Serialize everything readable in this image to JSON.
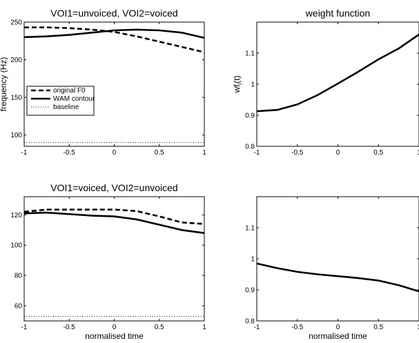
{
  "chart_data": [
    {
      "type": "line",
      "title": "VOI1=unvoiced, VOI2=voiced",
      "xlabel": "",
      "ylabel": "frequency (Hz)",
      "xlim": [
        -1,
        1
      ],
      "ylim": [
        85,
        250
      ],
      "xticks": [
        -1,
        -0.5,
        0,
        0.5,
        1
      ],
      "yticks": [
        100,
        150,
        200,
        250
      ],
      "legend": {
        "placement": "middle-left"
      },
      "series": [
        {
          "name": "original F0",
          "style": "dashed",
          "x": [
            -1,
            -0.75,
            -0.5,
            -0.25,
            0,
            0.25,
            0.5,
            0.75,
            1
          ],
          "y": [
            243,
            243,
            242,
            240,
            237,
            231,
            224,
            217,
            210
          ]
        },
        {
          "name": "WAM contour",
          "style": "solid",
          "x": [
            -1,
            -0.75,
            -0.5,
            -0.25,
            0,
            0.25,
            0.5,
            0.75,
            1
          ],
          "y": [
            230,
            231,
            233,
            236,
            239,
            240,
            239,
            236,
            229
          ]
        },
        {
          "name": "baseline",
          "style": "dotted",
          "x": [
            -1,
            1
          ],
          "y": [
            90,
            90
          ]
        }
      ]
    },
    {
      "type": "line",
      "title": "weight function",
      "xlabel": "",
      "ylabel": "wf",
      "ylabel_sub": "i",
      "ylabel_suffix": "(t)",
      "xlim": [
        -1,
        1
      ],
      "ylim": [
        0.8,
        1.2
      ],
      "xticks": [
        -1,
        -0.5,
        0,
        0.5,
        1
      ],
      "yticks": [
        0.8,
        0.9,
        1,
        1.1
      ],
      "series": [
        {
          "style": "solid",
          "x": [
            -1,
            -0.75,
            -0.5,
            -0.25,
            0,
            0.25,
            0.5,
            0.75,
            1
          ],
          "y": [
            0.913,
            0.917,
            0.935,
            0.965,
            1.002,
            1.04,
            1.08,
            1.115,
            1.16
          ]
        }
      ]
    },
    {
      "type": "line",
      "title": "VOI1=voiced, VOI2=unvoiced",
      "xlabel": "normalised time",
      "ylabel": "",
      "xlim": [
        -1,
        1
      ],
      "ylim": [
        50,
        132
      ],
      "xticks": [
        -1,
        -0.5,
        0,
        0.5,
        1
      ],
      "yticks": [
        60,
        80,
        100,
        120
      ],
      "series": [
        {
          "style": "dashed",
          "x": [
            -1,
            -0.75,
            -0.5,
            -0.25,
            0,
            0.25,
            0.5,
            0.75,
            1
          ],
          "y": [
            122,
            123.5,
            123.5,
            123.5,
            123.5,
            122.5,
            119,
            115,
            114
          ]
        },
        {
          "style": "solid",
          "x": [
            -1,
            -0.75,
            -0.5,
            -0.25,
            0,
            0.25,
            0.5,
            0.75,
            1
          ],
          "y": [
            121,
            121.5,
            120.5,
            119.5,
            119,
            117,
            113.5,
            110,
            108
          ]
        },
        {
          "style": "dotted",
          "x": [
            -1,
            1
          ],
          "y": [
            53,
            53
          ]
        }
      ]
    },
    {
      "type": "line",
      "title": "",
      "xlabel": "normalised time",
      "ylabel": "",
      "xlim": [
        -1,
        1
      ],
      "ylim": [
        0.8,
        1.2
      ],
      "xticks": [
        -1,
        -0.5,
        0,
        0.5,
        1
      ],
      "yticks": [
        0.8,
        0.9,
        1,
        1.1
      ],
      "series": [
        {
          "style": "solid",
          "x": [
            -1,
            -0.75,
            -0.5,
            -0.25,
            0,
            0.25,
            0.5,
            0.75,
            1
          ],
          "y": [
            0.985,
            0.97,
            0.958,
            0.95,
            0.944,
            0.938,
            0.93,
            0.915,
            0.895
          ]
        }
      ]
    }
  ]
}
